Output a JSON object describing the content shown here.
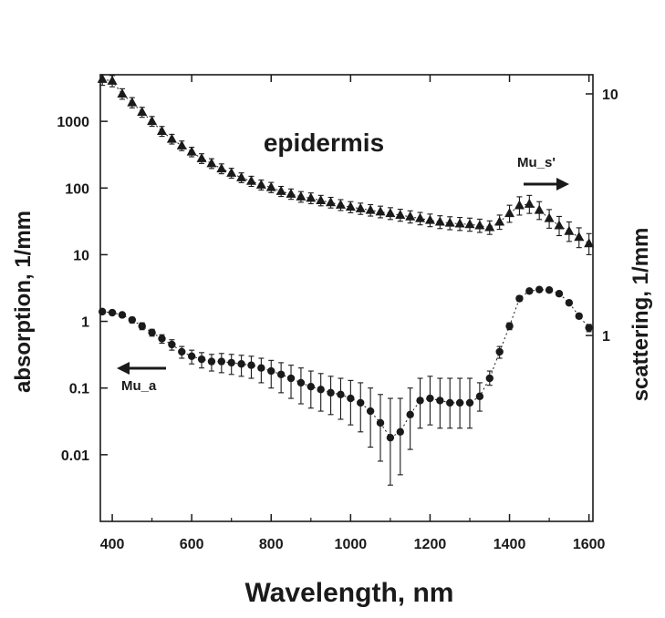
{
  "chart_data": {
    "type": "scatter",
    "title": "epidermis",
    "xlabel": "Wavelength, nm",
    "ylabel_left": "absorption, 1/mm",
    "ylabel_right": "scattering, 1/mm",
    "xlim": [
      370,
      1610
    ],
    "ylim_left": [
      0.001,
      5000
    ],
    "ylim_right": [
      0.17,
      12
    ],
    "yscale_left": "log",
    "yscale_right": "log",
    "grid": false,
    "x_ticks": [
      400,
      600,
      800,
      1000,
      1200,
      1400,
      1600
    ],
    "y_ticks_left": [
      {
        "value": 0.01,
        "label": "0.01"
      },
      {
        "value": 0.1,
        "label": "0.1"
      },
      {
        "value": 1,
        "label": "1"
      },
      {
        "value": 10,
        "label": "10"
      },
      {
        "value": 100,
        "label": "100"
      },
      {
        "value": 1000,
        "label": "1000"
      }
    ],
    "y_ticks_right": [
      {
        "value": 1,
        "label": "1"
      },
      {
        "value": 10,
        "label": "10"
      }
    ],
    "series": [
      {
        "name": "Mu_s'",
        "axis": "right",
        "marker": "triangle",
        "x": [
          375,
          400,
          425,
          450,
          475,
          500,
          525,
          550,
          575,
          600,
          625,
          650,
          675,
          700,
          725,
          750,
          775,
          800,
          825,
          850,
          875,
          900,
          925,
          950,
          975,
          1000,
          1025,
          1050,
          1075,
          1100,
          1125,
          1150,
          1175,
          1200,
          1225,
          1250,
          1275,
          1300,
          1325,
          1350,
          1375,
          1400,
          1425,
          1450,
          1475,
          1500,
          1525,
          1550,
          1575,
          1600
        ],
        "y": [
          11.5,
          11.3,
          10.0,
          9.2,
          8.4,
          7.7,
          7.0,
          6.5,
          6.1,
          5.75,
          5.4,
          5.15,
          4.9,
          4.7,
          4.5,
          4.35,
          4.2,
          4.1,
          3.95,
          3.85,
          3.75,
          3.7,
          3.62,
          3.55,
          3.47,
          3.4,
          3.35,
          3.3,
          3.25,
          3.2,
          3.15,
          3.1,
          3.05,
          3.0,
          2.95,
          2.92,
          2.9,
          2.88,
          2.85,
          2.8,
          2.95,
          3.2,
          3.45,
          3.5,
          3.3,
          3.05,
          2.85,
          2.7,
          2.55,
          2.4
        ],
        "yerr": [
          0.65,
          0.6,
          0.5,
          0.45,
          0.4,
          0.36,
          0.33,
          0.3,
          0.28,
          0.26,
          0.25,
          0.24,
          0.23,
          0.22,
          0.21,
          0.21,
          0.2,
          0.2,
          0.19,
          0.19,
          0.19,
          0.19,
          0.18,
          0.18,
          0.18,
          0.18,
          0.18,
          0.18,
          0.18,
          0.18,
          0.18,
          0.18,
          0.18,
          0.18,
          0.18,
          0.18,
          0.18,
          0.18,
          0.18,
          0.18,
          0.2,
          0.26,
          0.3,
          0.3,
          0.28,
          0.27,
          0.26,
          0.25,
          0.24,
          0.24
        ]
      },
      {
        "name": "Mu_a",
        "axis": "left",
        "marker": "circle",
        "x": [
          375,
          400,
          425,
          450,
          475,
          500,
          525,
          550,
          575,
          600,
          625,
          650,
          675,
          700,
          725,
          750,
          775,
          800,
          825,
          850,
          875,
          900,
          925,
          950,
          975,
          1000,
          1025,
          1050,
          1075,
          1100,
          1125,
          1150,
          1175,
          1200,
          1225,
          1250,
          1275,
          1300,
          1325,
          1350,
          1375,
          1400,
          1425,
          1450,
          1475,
          1500,
          1525,
          1550,
          1575,
          1600
        ],
        "y": [
          1.4,
          1.35,
          1.25,
          1.05,
          0.85,
          0.68,
          0.55,
          0.45,
          0.35,
          0.3,
          0.27,
          0.25,
          0.25,
          0.24,
          0.23,
          0.22,
          0.2,
          0.18,
          0.16,
          0.14,
          0.12,
          0.105,
          0.095,
          0.085,
          0.08,
          0.07,
          0.06,
          0.045,
          0.03,
          0.018,
          0.022,
          0.04,
          0.065,
          0.07,
          0.065,
          0.06,
          0.06,
          0.06,
          0.075,
          0.14,
          0.35,
          0.85,
          2.2,
          2.85,
          3.0,
          2.95,
          2.6,
          1.9,
          1.2,
          0.8
        ],
        "lo": [
          1.3,
          1.25,
          1.15,
          0.95,
          0.75,
          0.6,
          0.47,
          0.37,
          0.28,
          0.23,
          0.2,
          0.18,
          0.17,
          0.16,
          0.15,
          0.14,
          0.12,
          0.1,
          0.085,
          0.07,
          0.058,
          0.05,
          0.045,
          0.04,
          0.034,
          0.028,
          0.022,
          0.013,
          0.008,
          0.0035,
          0.005,
          0.012,
          0.025,
          0.028,
          0.025,
          0.025,
          0.025,
          0.025,
          0.045,
          0.11,
          0.28,
          0.75,
          2.0,
          2.65,
          2.8,
          2.75,
          2.4,
          1.75,
          1.1,
          0.7
        ],
        "hi": [
          1.5,
          1.45,
          1.35,
          1.15,
          0.95,
          0.76,
          0.63,
          0.53,
          0.42,
          0.37,
          0.34,
          0.32,
          0.33,
          0.32,
          0.31,
          0.3,
          0.28,
          0.26,
          0.24,
          0.22,
          0.2,
          0.18,
          0.165,
          0.15,
          0.14,
          0.13,
          0.12,
          0.1,
          0.08,
          0.07,
          0.07,
          0.1,
          0.14,
          0.15,
          0.14,
          0.14,
          0.14,
          0.14,
          0.12,
          0.18,
          0.42,
          0.95,
          2.4,
          3.05,
          3.2,
          3.15,
          2.8,
          2.05,
          1.3,
          0.9
        ]
      }
    ],
    "annotations": [
      {
        "text": "Mu_s'",
        "arrow": "right",
        "applies_to_axis": "right"
      },
      {
        "text": "Mu_a",
        "arrow": "left",
        "applies_to_axis": "left"
      }
    ]
  }
}
